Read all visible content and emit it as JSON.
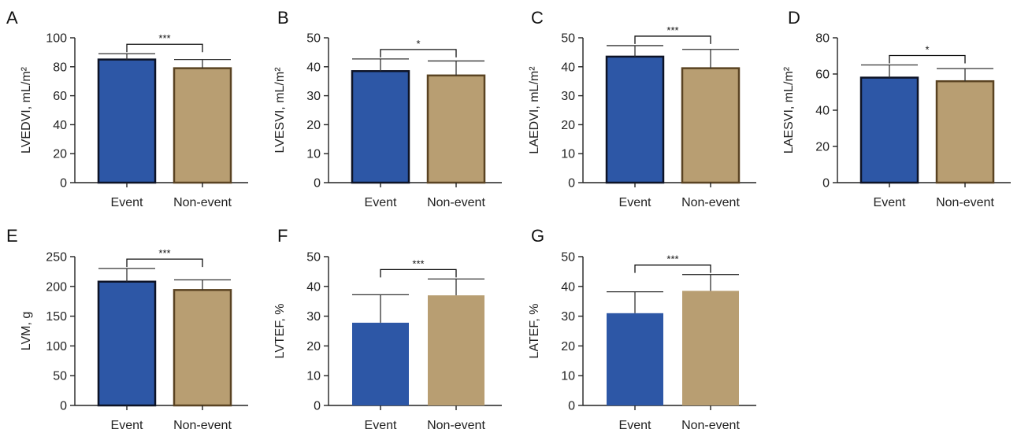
{
  "colors": {
    "event": "#2d57a6",
    "non_event": "#b89e72",
    "event_border": "#0d1326",
    "non_event_border": "#5a4322",
    "error_bar": "#333333",
    "bracket": "#111111"
  },
  "chart_data": [
    {
      "panel": "A",
      "type": "bar",
      "ylabel": "LVEDVI, mL/m²",
      "categories": [
        "Event",
        "Non-event"
      ],
      "values": [
        85,
        79
      ],
      "errors": [
        4,
        6
      ],
      "ylim": [
        0,
        100
      ],
      "yticks": [
        0,
        20,
        40,
        60,
        80,
        100
      ],
      "yticks_labels": [
        "0",
        "20",
        "40",
        "60",
        "80",
        "100"
      ],
      "significance": "***",
      "bar_border": true
    },
    {
      "panel": "B",
      "type": "bar",
      "ylabel": "LVESVI, mL/m²",
      "categories": [
        "Event",
        "Non-event"
      ],
      "values": [
        38.5,
        37
      ],
      "errors": [
        4.2,
        5
      ],
      "ylim": [
        0,
        50
      ],
      "yticks": [
        0,
        10,
        20,
        30,
        40,
        50
      ],
      "yticks_labels": [
        "0",
        "10",
        "20",
        "30",
        "40",
        "50"
      ],
      "significance": "*",
      "bar_border": true
    },
    {
      "panel": "C",
      "type": "bar",
      "ylabel": "LAEDVI, mL/m²",
      "categories": [
        "Event",
        "Non-event"
      ],
      "values": [
        43.5,
        39.5
      ],
      "errors": [
        3.8,
        6.5
      ],
      "ylim": [
        0,
        50
      ],
      "yticks": [
        0,
        10,
        20,
        30,
        40,
        50
      ],
      "yticks_labels": [
        "0",
        "10",
        "20",
        "30",
        "40",
        "50"
      ],
      "significance": "***",
      "bar_border": true
    },
    {
      "panel": "D",
      "type": "bar",
      "ylabel": "LAESVI, mL/m²",
      "categories": [
        "Event",
        "Non-event"
      ],
      "values": [
        58,
        56
      ],
      "errors": [
        7,
        7
      ],
      "ylim": [
        0,
        80
      ],
      "yticks": [
        0,
        20,
        40,
        60,
        80
      ],
      "yticks_labels": [
        "0",
        "20",
        "40",
        "60",
        "80"
      ],
      "significance": "*",
      "bar_border": true
    },
    {
      "panel": "E",
      "type": "bar",
      "ylabel": "LVM, g",
      "categories": [
        "Event",
        "Non-event"
      ],
      "values": [
        208,
        194
      ],
      "errors": [
        22,
        17
      ],
      "ylim": [
        0,
        250
      ],
      "yticks": [
        0,
        50,
        100,
        150,
        200,
        250
      ],
      "yticks_labels": [
        "0",
        "50",
        "100",
        "150",
        "200",
        "250"
      ],
      "significance": "***",
      "bar_border": true
    },
    {
      "panel": "F",
      "type": "bar",
      "ylabel": "LVTEF, %",
      "categories": [
        "Event",
        "Non-event"
      ],
      "values": [
        27.8,
        37
      ],
      "errors": [
        9.4,
        5.5
      ],
      "ylim": [
        0,
        50
      ],
      "yticks": [
        0,
        10,
        20,
        30,
        40,
        50
      ],
      "yticks_labels": [
        "0",
        "10",
        "20",
        "30",
        "40",
        "50"
      ],
      "significance": "***",
      "bar_border": false
    },
    {
      "panel": "G",
      "type": "bar",
      "ylabel": "LATEF, %",
      "categories": [
        "Event",
        "Non-event"
      ],
      "values": [
        31,
        38.5
      ],
      "errors": [
        7.2,
        5.5
      ],
      "ylim": [
        0,
        50
      ],
      "yticks": [
        0,
        10,
        20,
        30,
        40,
        50
      ],
      "yticks_labels": [
        "0",
        "10",
        "20",
        "30",
        "40",
        "50"
      ],
      "significance": "***",
      "bar_border": false
    }
  ]
}
